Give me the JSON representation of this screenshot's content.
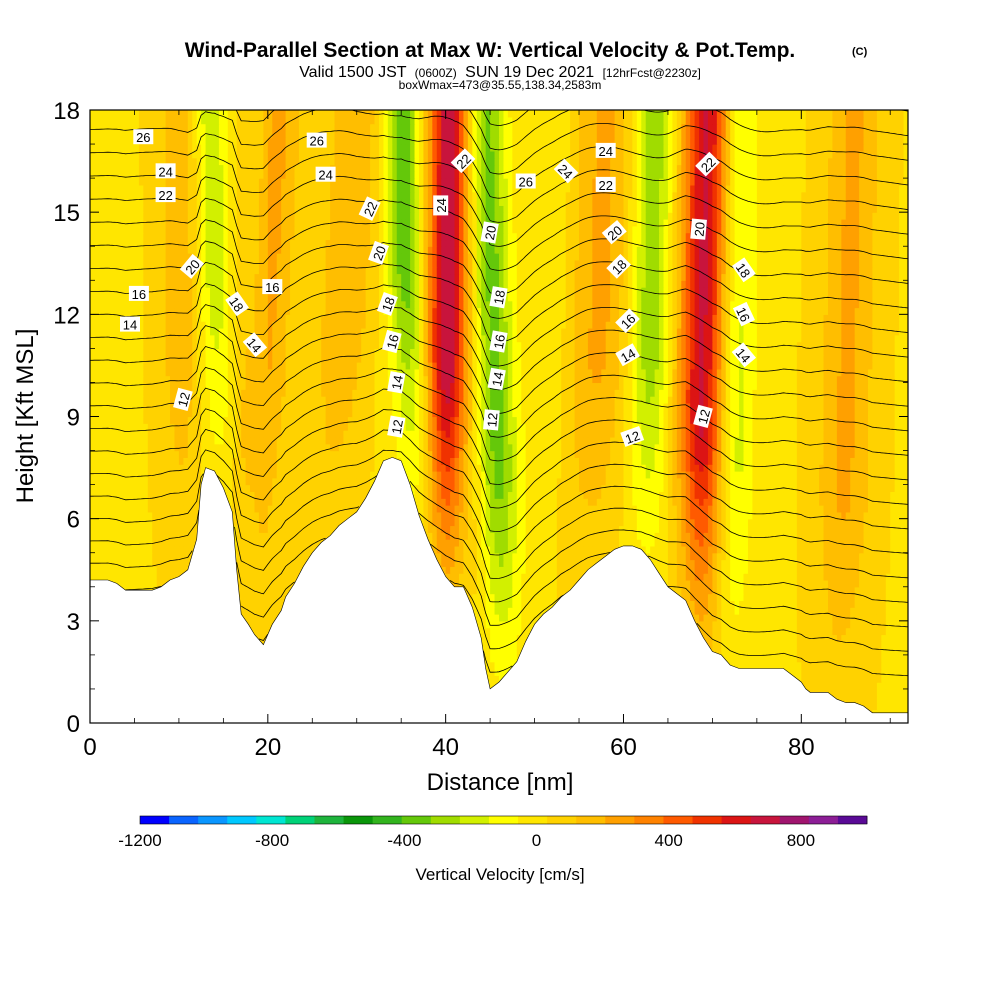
{
  "header": {
    "title": "Wind-Parallel Section at Max W: Vertical Velocity & Pot.Temp.",
    "copyright": "(C)",
    "valid_prefix": "Valid 1500 JST",
    "utc": "(0600Z)",
    "valid_date": "SUN 19 Dec 2021",
    "forecast": "[12hrFcst@2230z]",
    "box_info": "boxWmax=473@35.55,138.34,2583m"
  },
  "chart_data": {
    "type": "heatmap",
    "xlabel": "Distance [nm]",
    "ylabel": "Height [Kft MSL]",
    "xlim": [
      0,
      92
    ],
    "ylim": [
      0,
      18
    ],
    "x_ticks": [
      "0",
      "20",
      "40",
      "60",
      "80"
    ],
    "y_ticks": [
      "0",
      "3",
      "6",
      "9",
      "12",
      "15",
      "18"
    ],
    "grid": false,
    "colorbar": {
      "title": "Vertical Velocity [cm/s]",
      "tick_labels": [
        "-1200",
        "-800",
        "-400",
        "0",
        "400",
        "800"
      ],
      "tick_values": [
        -1200,
        -800,
        -400,
        0,
        400,
        800
      ],
      "range": [
        -1200,
        1000
      ],
      "colors": [
        "#0000ff",
        "#0a64ff",
        "#0a96ff",
        "#00c8ff",
        "#00e6d2",
        "#00d278",
        "#1eb43c",
        "#0a960a",
        "#32b41e",
        "#64c80a",
        "#a0dc00",
        "#d2f000",
        "#ffff00",
        "#ffe600",
        "#ffd200",
        "#ffbe00",
        "#ffa000",
        "#ff8200",
        "#ff5a00",
        "#f03200",
        "#dc1414",
        "#c8143c",
        "#a0146e",
        "#8c1e96",
        "#5a0a96"
      ]
    },
    "terrain_kft": [
      [
        0,
        4.2
      ],
      [
        1,
        4.2
      ],
      [
        2,
        4.2
      ],
      [
        3,
        4.1
      ],
      [
        4,
        3.9
      ],
      [
        5,
        3.9
      ],
      [
        6,
        3.9
      ],
      [
        7,
        3.9
      ],
      [
        8,
        4.0
      ],
      [
        9,
        4.2
      ],
      [
        10,
        4.3
      ],
      [
        11,
        4.5
      ],
      [
        12,
        5.4
      ],
      [
        12.5,
        7.0
      ],
      [
        13,
        7.5
      ],
      [
        14,
        7.4
      ],
      [
        15,
        6.9
      ],
      [
        16,
        6.2
      ],
      [
        16.5,
        4.5
      ],
      [
        17,
        3.2
      ],
      [
        17.8,
        2.9
      ],
      [
        18.5,
        2.6
      ],
      [
        19.5,
        2.3
      ],
      [
        20,
        2.6
      ],
      [
        20.5,
        2.9
      ],
      [
        21.5,
        3.3
      ],
      [
        22,
        3.7
      ],
      [
        23,
        4.1
      ],
      [
        24,
        4.6
      ],
      [
        25,
        5.0
      ],
      [
        26,
        5.3
      ],
      [
        27,
        5.5
      ],
      [
        28,
        5.8
      ],
      [
        29,
        6.0
      ],
      [
        30,
        6.2
      ],
      [
        31,
        6.6
      ],
      [
        32,
        7.1
      ],
      [
        33,
        7.7
      ],
      [
        34,
        7.8
      ],
      [
        35,
        7.7
      ],
      [
        36,
        7.0
      ],
      [
        37,
        6.1
      ],
      [
        38,
        5.4
      ],
      [
        39,
        4.8
      ],
      [
        40,
        4.3
      ],
      [
        41,
        4.0
      ],
      [
        42,
        4.0
      ],
      [
        43,
        3.4
      ],
      [
        44,
        2.5
      ],
      [
        44.5,
        1.6
      ],
      [
        45,
        1.0
      ],
      [
        46,
        1.2
      ],
      [
        47,
        1.5
      ],
      [
        48,
        1.8
      ],
      [
        49,
        2.4
      ],
      [
        50,
        2.9
      ],
      [
        51,
        3.2
      ],
      [
        52,
        3.4
      ],
      [
        53,
        3.7
      ],
      [
        54,
        3.9
      ],
      [
        55,
        4.2
      ],
      [
        56,
        4.5
      ],
      [
        57,
        4.7
      ],
      [
        58,
        4.9
      ],
      [
        59,
        5.1
      ],
      [
        60,
        5.2
      ],
      [
        61,
        5.2
      ],
      [
        62,
        5.1
      ],
      [
        63,
        4.8
      ],
      [
        64,
        4.4
      ],
      [
        65,
        4.0
      ],
      [
        66,
        3.8
      ],
      [
        67,
        3.6
      ],
      [
        68,
        3.0
      ],
      [
        69,
        2.5
      ],
      [
        70,
        2.1
      ],
      [
        71,
        2.0
      ],
      [
        72,
        1.7
      ],
      [
        73,
        1.6
      ],
      [
        74,
        1.6
      ],
      [
        75,
        1.6
      ],
      [
        76,
        1.6
      ],
      [
        77,
        1.6
      ],
      [
        78,
        1.6
      ],
      [
        79,
        1.4
      ],
      [
        80,
        1.2
      ],
      [
        80.5,
        1.0
      ],
      [
        81,
        0.9
      ],
      [
        82,
        0.9
      ],
      [
        83,
        0.9
      ],
      [
        84,
        0.7
      ],
      [
        85,
        0.6
      ],
      [
        86,
        0.6
      ],
      [
        87,
        0.5
      ],
      [
        88,
        0.3
      ],
      [
        89,
        0.3
      ],
      [
        90,
        0.3
      ],
      [
        91,
        0.3
      ],
      [
        92,
        0.3
      ]
    ],
    "updraft_bands": [
      {
        "x_top": 40.5,
        "x_bottom": 39.5,
        "vmax": 700,
        "width": 2.3
      },
      {
        "x_top": 69.5,
        "x_bottom": 68.0,
        "vmax": 650,
        "width": 2.6
      },
      {
        "x_top": 21.0,
        "x_bottom": 17.0,
        "vmax": 220,
        "width": 2.8
      },
      {
        "x_top": 58.0,
        "x_bottom": 56.0,
        "vmax": 200,
        "width": 3.5
      },
      {
        "x_top": 30.0,
        "x_bottom": 26.0,
        "vmax": 180,
        "width": 3.0
      },
      {
        "x_top": 86.0,
        "x_bottom": 84.0,
        "vmax": 200,
        "width": 3.0
      },
      {
        "x_top": 10.0,
        "x_bottom": 11.0,
        "vmax": 150,
        "width": 2.5
      }
    ],
    "downdraft_bands": [
      {
        "x_top": 35.0,
        "x_bottom": 36.5,
        "vmin": -420,
        "width": 2.0
      },
      {
        "x_top": 44.5,
        "x_bottom": 47.0,
        "vmin": -380,
        "width": 2.2
      },
      {
        "x_top": 13.5,
        "x_bottom": 15.0,
        "vmin": -260,
        "width": 1.8
      },
      {
        "x_top": 63.5,
        "x_bottom": 62.0,
        "vmin": -330,
        "width": 2.2
      },
      {
        "x_top": 73.0,
        "x_bottom": 72.0,
        "vmin": -230,
        "width": 2.2
      },
      {
        "x_top": 19.0,
        "x_bottom": 18.0,
        "vmin": -90,
        "width": 1.2
      },
      {
        "x_top": 52.5,
        "x_bottom": 50.0,
        "vmin": -90,
        "width": 2.0
      }
    ],
    "theta_contours": {
      "levels_degC": [
        12,
        14,
        16,
        18,
        20,
        22,
        24,
        26
      ],
      "labels": [
        {
          "text": "26",
          "x": 6,
          "y": 17.2,
          "rot": 0
        },
        {
          "text": "24",
          "x": 8.5,
          "y": 16.2,
          "rot": 0
        },
        {
          "text": "22",
          "x": 8.5,
          "y": 15.5,
          "rot": 0
        },
        {
          "text": "20",
          "x": 11.5,
          "y": 13.4,
          "rot": -50
        },
        {
          "text": "16",
          "x": 5.5,
          "y": 12.6,
          "rot": 0
        },
        {
          "text": "14",
          "x": 4.5,
          "y": 11.7,
          "rot": 0
        },
        {
          "text": "12",
          "x": 10.5,
          "y": 9.5,
          "rot": -75
        },
        {
          "text": "18",
          "x": 16.5,
          "y": 12.3,
          "rot": 55
        },
        {
          "text": "16",
          "x": 20.5,
          "y": 12.8,
          "rot": 0
        },
        {
          "text": "14",
          "x": 18.5,
          "y": 11.1,
          "rot": 50
        },
        {
          "text": "26",
          "x": 25.5,
          "y": 17.1,
          "rot": 0
        },
        {
          "text": "24",
          "x": 26.5,
          "y": 16.1,
          "rot": 0
        },
        {
          "text": "22",
          "x": 31.5,
          "y": 15.1,
          "rot": -65
        },
        {
          "text": "20",
          "x": 32.5,
          "y": 13.8,
          "rot": -70
        },
        {
          "text": "18",
          "x": 33.5,
          "y": 12.3,
          "rot": -70
        },
        {
          "text": "16",
          "x": 34.0,
          "y": 11.2,
          "rot": -75
        },
        {
          "text": "14",
          "x": 34.5,
          "y": 10.0,
          "rot": -80
        },
        {
          "text": "12",
          "x": 34.5,
          "y": 8.7,
          "rot": -80
        },
        {
          "text": "24",
          "x": 39.5,
          "y": 15.2,
          "rot": -90
        },
        {
          "text": "22",
          "x": 42.0,
          "y": 16.5,
          "rot": -45
        },
        {
          "text": "20",
          "x": 45.0,
          "y": 14.4,
          "rot": -80
        },
        {
          "text": "18",
          "x": 46.0,
          "y": 12.5,
          "rot": -80
        },
        {
          "text": "16",
          "x": 46.0,
          "y": 11.2,
          "rot": -80
        },
        {
          "text": "14",
          "x": 45.8,
          "y": 10.1,
          "rot": -80
        },
        {
          "text": "12",
          "x": 45.2,
          "y": 8.9,
          "rot": -85
        },
        {
          "text": "26",
          "x": 49.0,
          "y": 15.9,
          "rot": 0
        },
        {
          "text": "24",
          "x": 53.5,
          "y": 16.2,
          "rot": 45
        },
        {
          "text": "24",
          "x": 58.0,
          "y": 16.8,
          "rot": 0
        },
        {
          "text": "22",
          "x": 58.0,
          "y": 15.8,
          "rot": 0
        },
        {
          "text": "20",
          "x": 59.0,
          "y": 14.4,
          "rot": -40
        },
        {
          "text": "18",
          "x": 59.5,
          "y": 13.4,
          "rot": -45
        },
        {
          "text": "16",
          "x": 60.5,
          "y": 11.8,
          "rot": -45
        },
        {
          "text": "14",
          "x": 60.5,
          "y": 10.8,
          "rot": -30
        },
        {
          "text": "12",
          "x": 61.0,
          "y": 8.4,
          "rot": -20
        },
        {
          "text": "20",
          "x": 68.5,
          "y": 14.5,
          "rot": -85
        },
        {
          "text": "22",
          "x": 69.5,
          "y": 16.4,
          "rot": -45
        },
        {
          "text": "12",
          "x": 69.0,
          "y": 9.0,
          "rot": -75
        },
        {
          "text": "18",
          "x": 73.5,
          "y": 13.3,
          "rot": 55
        },
        {
          "text": "16",
          "x": 73.5,
          "y": 12.0,
          "rot": 65
        },
        {
          "text": "14",
          "x": 73.5,
          "y": 10.8,
          "rot": 50
        }
      ]
    }
  }
}
